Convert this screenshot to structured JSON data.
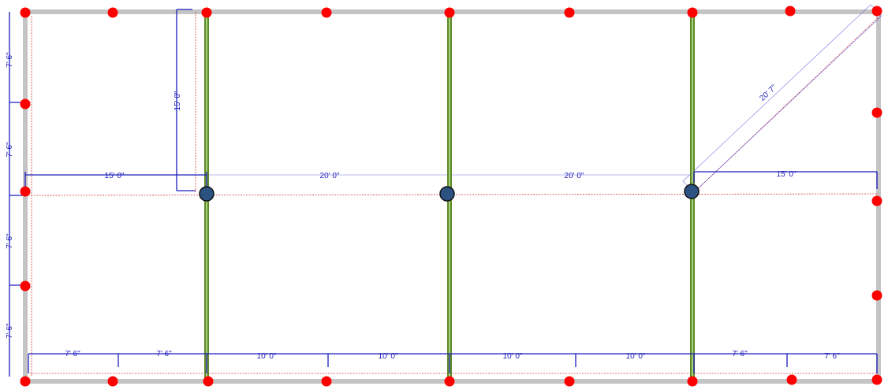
{
  "colors": {
    "wall": "#c4c4c4",
    "beam_outer": "#5e8a2a",
    "beam_inner": "#a9d17a",
    "dimension": "#1d1dbd",
    "ref_line": "#d23c3c",
    "point": "#ff0000",
    "column": "#2c5282",
    "column_stroke": "#111111"
  },
  "dimensions": {
    "left_1": "7' 6\"",
    "left_2": "7' 6\"",
    "left_3": "7' 6\"",
    "left_4": "7' 6\"",
    "vertical_15": "15' 0\"",
    "mid_15_left": "15' 0\"",
    "mid_20_a": "20' 0\"",
    "mid_20_b": "20' 0\"",
    "mid_15_right": "15' 0\"",
    "diagonal": "20' 7\"",
    "bottom_1": "7' 6\"",
    "bottom_2": "7' 6\"",
    "bottom_3": "10' 0\"",
    "bottom_4": "10' 0\"",
    "bottom_5": "10' 0\"",
    "bottom_6": "10' 0\"",
    "bottom_7": "7' 6\"",
    "bottom_8": "7' 6\""
  }
}
